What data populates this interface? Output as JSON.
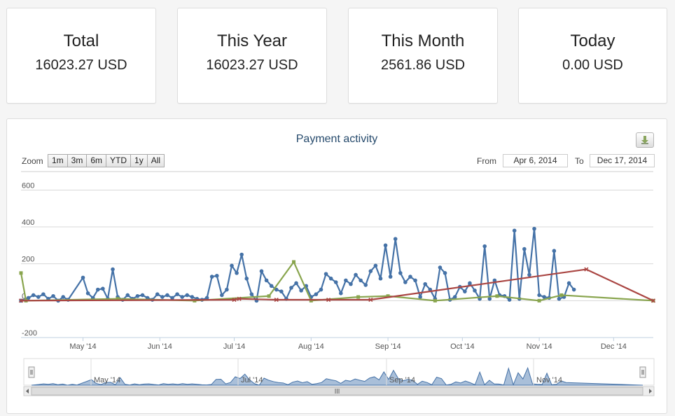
{
  "stats": [
    {
      "title": "Total",
      "value": "16023.27 USD"
    },
    {
      "title": "This Year",
      "value": "16023.27 USD"
    },
    {
      "title": "This Month",
      "value": "2561.86 USD"
    },
    {
      "title": "Today",
      "value": "0.00 USD"
    }
  ],
  "chart": {
    "zoom_label": "Zoom",
    "zoom_buttons": [
      "1m",
      "3m",
      "6m",
      "YTD",
      "1y",
      "All"
    ],
    "from_label": "From",
    "to_label": "To",
    "from_date": "Apr 6, 2014",
    "to_date": "Dec 17, 2014",
    "navigator_labels": [
      "May '14",
      "Jul '14",
      "Sep '14",
      "Nov '14"
    ]
  },
  "chart_data": {
    "type": "line",
    "title": "Payment activity",
    "xlabel": "",
    "ylabel": "",
    "x_range": [
      "2014-04-06",
      "2014-12-17"
    ],
    "ylim": [
      -200,
      700
    ],
    "y_ticks": [
      "-200",
      "0",
      "200",
      "400",
      "600"
    ],
    "x_ticks": [
      {
        "date": "2014-05-01",
        "label": "May '14"
      },
      {
        "date": "2014-06-01",
        "label": "Jun '14"
      },
      {
        "date": "2014-07-01",
        "label": "Jul '14"
      },
      {
        "date": "2014-08-01",
        "label": "Aug '14"
      },
      {
        "date": "2014-09-01",
        "label": "Sep '14"
      },
      {
        "date": "2014-10-01",
        "label": "Oct '14"
      },
      {
        "date": "2014-11-01",
        "label": "Nov '14"
      },
      {
        "date": "2014-12-01",
        "label": "Dec '14"
      }
    ],
    "grid": true,
    "series": [
      {
        "color": "#4572a7",
        "marker": "circle",
        "points": [
          [
            "2014-04-06",
            0
          ],
          [
            "2014-04-09",
            15
          ],
          [
            "2014-04-11",
            30
          ],
          [
            "2014-04-13",
            20
          ],
          [
            "2014-04-15",
            35
          ],
          [
            "2014-04-17",
            10
          ],
          [
            "2014-04-19",
            25
          ],
          [
            "2014-04-21",
            0
          ],
          [
            "2014-04-23",
            20
          ],
          [
            "2014-04-25",
            5
          ],
          [
            "2014-05-01",
            125
          ],
          [
            "2014-05-03",
            40
          ],
          [
            "2014-05-05",
            15
          ],
          [
            "2014-05-07",
            60
          ],
          [
            "2014-05-09",
            65
          ],
          [
            "2014-05-11",
            10
          ],
          [
            "2014-05-13",
            170
          ],
          [
            "2014-05-15",
            20
          ],
          [
            "2014-05-17",
            5
          ],
          [
            "2014-05-19",
            30
          ],
          [
            "2014-05-21",
            10
          ],
          [
            "2014-05-23",
            25
          ],
          [
            "2014-05-25",
            30
          ],
          [
            "2014-05-27",
            15
          ],
          [
            "2014-05-29",
            5
          ],
          [
            "2014-05-31",
            35
          ],
          [
            "2014-06-02",
            20
          ],
          [
            "2014-06-04",
            30
          ],
          [
            "2014-06-06",
            15
          ],
          [
            "2014-06-08",
            35
          ],
          [
            "2014-06-10",
            20
          ],
          [
            "2014-06-12",
            30
          ],
          [
            "2014-06-14",
            20
          ],
          [
            "2014-06-16",
            10
          ],
          [
            "2014-06-18",
            5
          ],
          [
            "2014-06-20",
            15
          ],
          [
            "2014-06-22",
            130
          ],
          [
            "2014-06-24",
            135
          ],
          [
            "2014-06-26",
            30
          ],
          [
            "2014-06-28",
            60
          ],
          [
            "2014-06-30",
            190
          ],
          [
            "2014-07-02",
            150
          ],
          [
            "2014-07-04",
            250
          ],
          [
            "2014-07-06",
            120
          ],
          [
            "2014-07-08",
            35
          ],
          [
            "2014-07-10",
            0
          ],
          [
            "2014-07-12",
            160
          ],
          [
            "2014-07-14",
            110
          ],
          [
            "2014-07-16",
            80
          ],
          [
            "2014-07-18",
            60
          ],
          [
            "2014-07-20",
            50
          ],
          [
            "2014-07-22",
            10
          ],
          [
            "2014-07-24",
            70
          ],
          [
            "2014-07-26",
            95
          ],
          [
            "2014-07-28",
            55
          ],
          [
            "2014-07-30",
            80
          ],
          [
            "2014-08-01",
            20
          ],
          [
            "2014-08-03",
            35
          ],
          [
            "2014-08-05",
            60
          ],
          [
            "2014-08-07",
            145
          ],
          [
            "2014-08-09",
            120
          ],
          [
            "2014-08-11",
            100
          ],
          [
            "2014-08-13",
            40
          ],
          [
            "2014-08-15",
            110
          ],
          [
            "2014-08-17",
            90
          ],
          [
            "2014-08-19",
            140
          ],
          [
            "2014-08-21",
            110
          ],
          [
            "2014-08-23",
            85
          ],
          [
            "2014-08-25",
            160
          ],
          [
            "2014-08-27",
            190
          ],
          [
            "2014-08-29",
            120
          ],
          [
            "2014-08-31",
            300
          ],
          [
            "2014-09-02",
            130
          ],
          [
            "2014-09-04",
            335
          ],
          [
            "2014-09-06",
            150
          ],
          [
            "2014-09-08",
            100
          ],
          [
            "2014-09-10",
            130
          ],
          [
            "2014-09-12",
            110
          ],
          [
            "2014-09-14",
            20
          ],
          [
            "2014-09-16",
            90
          ],
          [
            "2014-09-18",
            60
          ],
          [
            "2014-09-20",
            10
          ],
          [
            "2014-09-22",
            180
          ],
          [
            "2014-09-24",
            150
          ],
          [
            "2014-09-26",
            5
          ],
          [
            "2014-09-28",
            20
          ],
          [
            "2014-09-30",
            75
          ],
          [
            "2014-10-02",
            50
          ],
          [
            "2014-10-04",
            95
          ],
          [
            "2014-10-06",
            55
          ],
          [
            "2014-10-08",
            10
          ],
          [
            "2014-10-10",
            295
          ],
          [
            "2014-10-12",
            10
          ],
          [
            "2014-10-14",
            110
          ],
          [
            "2014-10-16",
            30
          ],
          [
            "2014-10-18",
            25
          ],
          [
            "2014-10-20",
            5
          ],
          [
            "2014-10-22",
            380
          ],
          [
            "2014-10-24",
            10
          ],
          [
            "2014-10-26",
            280
          ],
          [
            "2014-10-28",
            140
          ],
          [
            "2014-10-30",
            390
          ],
          [
            "2014-11-01",
            30
          ],
          [
            "2014-11-03",
            20
          ],
          [
            "2014-11-05",
            15
          ],
          [
            "2014-11-07",
            270
          ],
          [
            "2014-11-09",
            10
          ],
          [
            "2014-11-11",
            20
          ],
          [
            "2014-11-13",
            95
          ],
          [
            "2014-11-15",
            60
          ]
        ]
      },
      {
        "color": "#89a54e",
        "marker": "square",
        "points": [
          [
            "2014-04-06",
            150
          ],
          [
            "2014-04-08",
            0
          ],
          [
            "2014-05-15",
            10
          ],
          [
            "2014-06-15",
            0
          ],
          [
            "2014-07-15",
            25
          ],
          [
            "2014-07-25",
            210
          ],
          [
            "2014-08-01",
            0
          ],
          [
            "2014-08-20",
            20
          ],
          [
            "2014-09-01",
            25
          ],
          [
            "2014-09-20",
            0
          ],
          [
            "2014-10-15",
            25
          ],
          [
            "2014-11-01",
            0
          ],
          [
            "2014-11-10",
            30
          ],
          [
            "2014-12-17",
            0
          ]
        ]
      },
      {
        "color": "#aa4643",
        "marker": "x",
        "points": [
          [
            "2014-04-06",
            0
          ],
          [
            "2014-07-01",
            5
          ],
          [
            "2014-07-03",
            10
          ],
          [
            "2014-07-18",
            5
          ],
          [
            "2014-08-08",
            5
          ],
          [
            "2014-08-25",
            5
          ],
          [
            "2014-11-20",
            170
          ],
          [
            "2014-12-17",
            0
          ]
        ]
      }
    ]
  },
  "colors": {
    "blue_series": "#4572a7",
    "green_series": "#89a54e",
    "red_series": "#aa4643",
    "navigator_fill": "#a9bfd9"
  }
}
